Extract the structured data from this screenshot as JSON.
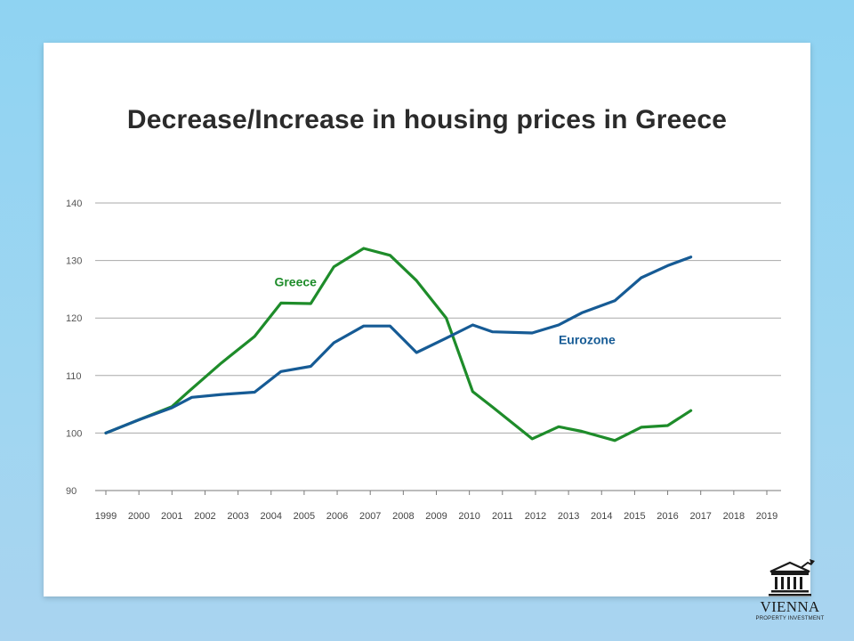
{
  "chart_data": {
    "type": "line",
    "title": "Decrease/Increase in housing prices in Greece",
    "xlabel": "",
    "ylabel": "",
    "x": [
      "1999",
      "2000",
      "2001",
      "2002",
      "2003",
      "2004",
      "2005",
      "2006",
      "2007",
      "2008",
      "2009",
      "2010",
      "2011",
      "2012",
      "2013",
      "2014",
      "2015",
      "2016",
      "2017",
      "2018",
      "2019"
    ],
    "ylim": [
      90,
      140
    ],
    "yticks": [
      90,
      100,
      110,
      120,
      130,
      140
    ],
    "grid": true,
    "series": [
      {
        "name": "Greece",
        "color": "#1e8c2a",
        "points": [
          [
            0,
            100
          ],
          [
            1,
            102.3
          ],
          [
            2,
            104.6
          ],
          [
            2.5,
            107.2
          ],
          [
            3.5,
            112.2
          ],
          [
            4.5,
            116.8
          ],
          [
            5.3,
            122.6
          ],
          [
            6.2,
            122.5
          ],
          [
            6.9,
            128.9
          ],
          [
            7.8,
            132.1
          ],
          [
            8.6,
            130.9
          ],
          [
            9.4,
            126.5
          ],
          [
            10.3,
            120
          ],
          [
            11.1,
            107.2
          ],
          [
            11.7,
            104.5
          ],
          [
            12.9,
            99
          ],
          [
            13.7,
            101.1
          ],
          [
            14.4,
            100.3
          ],
          [
            15.4,
            98.7
          ],
          [
            16.2,
            101
          ],
          [
            17.0,
            101.3
          ],
          [
            17.7,
            103.9
          ]
        ]
      },
      {
        "name": "Eurozone",
        "color": "#165b95",
        "points": [
          [
            0,
            100
          ],
          [
            1,
            102.3
          ],
          [
            2,
            104.4
          ],
          [
            2.6,
            106.2
          ],
          [
            3.5,
            106.7
          ],
          [
            4.5,
            107.1
          ],
          [
            5.3,
            110.7
          ],
          [
            6.2,
            111.6
          ],
          [
            6.9,
            115.7
          ],
          [
            7.8,
            118.6
          ],
          [
            8.6,
            118.6
          ],
          [
            9.4,
            114
          ],
          [
            10.3,
            116.5
          ],
          [
            11.1,
            118.8
          ],
          [
            11.7,
            117.6
          ],
          [
            12.9,
            117.4
          ],
          [
            13.7,
            118.8
          ],
          [
            14.4,
            120.9
          ],
          [
            15.4,
            123
          ],
          [
            16.2,
            127
          ],
          [
            17.0,
            129.1
          ],
          [
            17.7,
            130.6
          ]
        ]
      }
    ],
    "annotations": [
      {
        "text": "Greece",
        "series": "Greece",
        "x": 5.1,
        "y": 125.5
      },
      {
        "text": "Eurozone",
        "series": "Eurozone",
        "x": 13.7,
        "y": 115.5
      }
    ]
  },
  "logo": {
    "name": "VIENNA",
    "tagline": "PROPERTY INVESTMENT"
  }
}
